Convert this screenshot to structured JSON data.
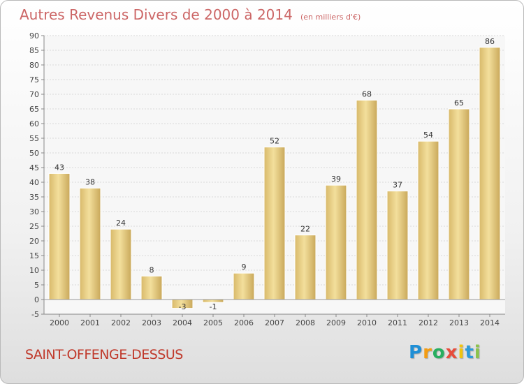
{
  "chart_data": {
    "type": "bar",
    "title": "Autres Revenus Divers de 2000 à 2014",
    "unit_label": "(en milliers d'€)",
    "categories": [
      "2000",
      "2001",
      "2002",
      "2003",
      "2004",
      "2005",
      "2006",
      "2007",
      "2008",
      "2009",
      "2010",
      "2011",
      "2012",
      "2013",
      "2014"
    ],
    "values": [
      43,
      38,
      24,
      8,
      -3,
      -1,
      9,
      52,
      22,
      39,
      68,
      37,
      54,
      65,
      86
    ],
    "data_labels": [
      "43",
      "38",
      "24",
      "8",
      "-3",
      "-1",
      "9",
      "52",
      "22",
      "39",
      "68",
      "37",
      "54",
      "65",
      "86"
    ],
    "ylim": [
      -5,
      90
    ],
    "yticks": [
      -5,
      0,
      5,
      10,
      15,
      20,
      25,
      30,
      35,
      40,
      45,
      50,
      55,
      60,
      65,
      70,
      75,
      80,
      85,
      90
    ],
    "grid": true,
    "legend": "none",
    "bar_color": "#e6cd8a"
  },
  "place": "SAINT-OFFENGE-DESSUS",
  "logo": {
    "letters": [
      "P",
      "r",
      "o",
      "x",
      "i",
      "t",
      "i"
    ],
    "colors": [
      "#1f8fd6",
      "#f39c12",
      "#27ae60",
      "#e74c3c",
      "#f1c40f",
      "#2c9ad8",
      "#8bc34a"
    ]
  }
}
